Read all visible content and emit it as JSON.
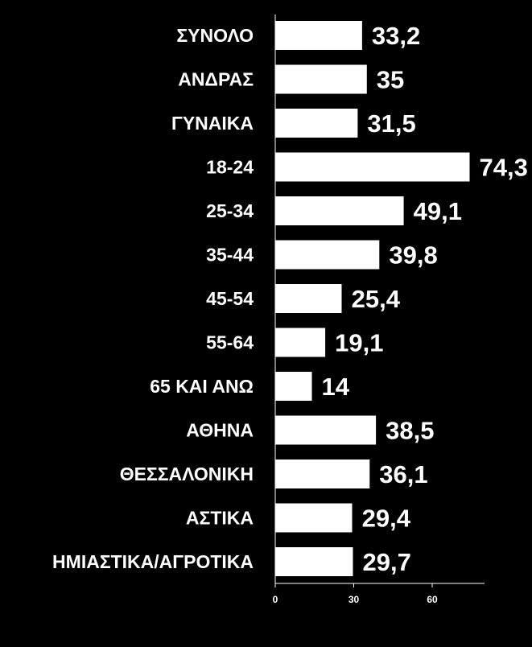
{
  "colors": {
    "background": "#000000",
    "bar": "#ffffff",
    "axis": "#ffffff",
    "text": "#ffffff"
  },
  "chart_data": {
    "type": "bar",
    "orientation": "horizontal",
    "categories": [
      "ΣΥΝΟΛΟ",
      "ΑΝΔΡΑΣ",
      "ΓΥΝΑΙΚΑ",
      "18-24",
      "25-34",
      "35-44",
      "45-54",
      "55-64",
      "65 ΚΑΙ ΑΝΩ",
      "ΑΘΗΝΑ",
      "ΘΕΣΣΑΛΟΝΙΚΗ",
      "ΑΣΤΙΚΑ",
      "ΗΜΙΑΣΤΙΚΑ/ΑΓΡΟΤΙΚΑ"
    ],
    "values": [
      33.2,
      35,
      31.5,
      74.3,
      49.1,
      39.8,
      25.4,
      19.1,
      14,
      38.5,
      36.1,
      29.4,
      29.7
    ],
    "value_labels": [
      "33,2",
      "35",
      "31,5",
      "74,3",
      "49,1",
      "39,8",
      "25,4",
      "19,1",
      "14",
      "38,5",
      "36,1",
      "29,4",
      "29,7"
    ],
    "x_ticks": [
      0,
      30,
      60
    ],
    "x_tick_labels": [
      "0",
      "30",
      "60"
    ],
    "xlim": [
      0,
      80
    ],
    "grid": false,
    "legend": "none"
  }
}
